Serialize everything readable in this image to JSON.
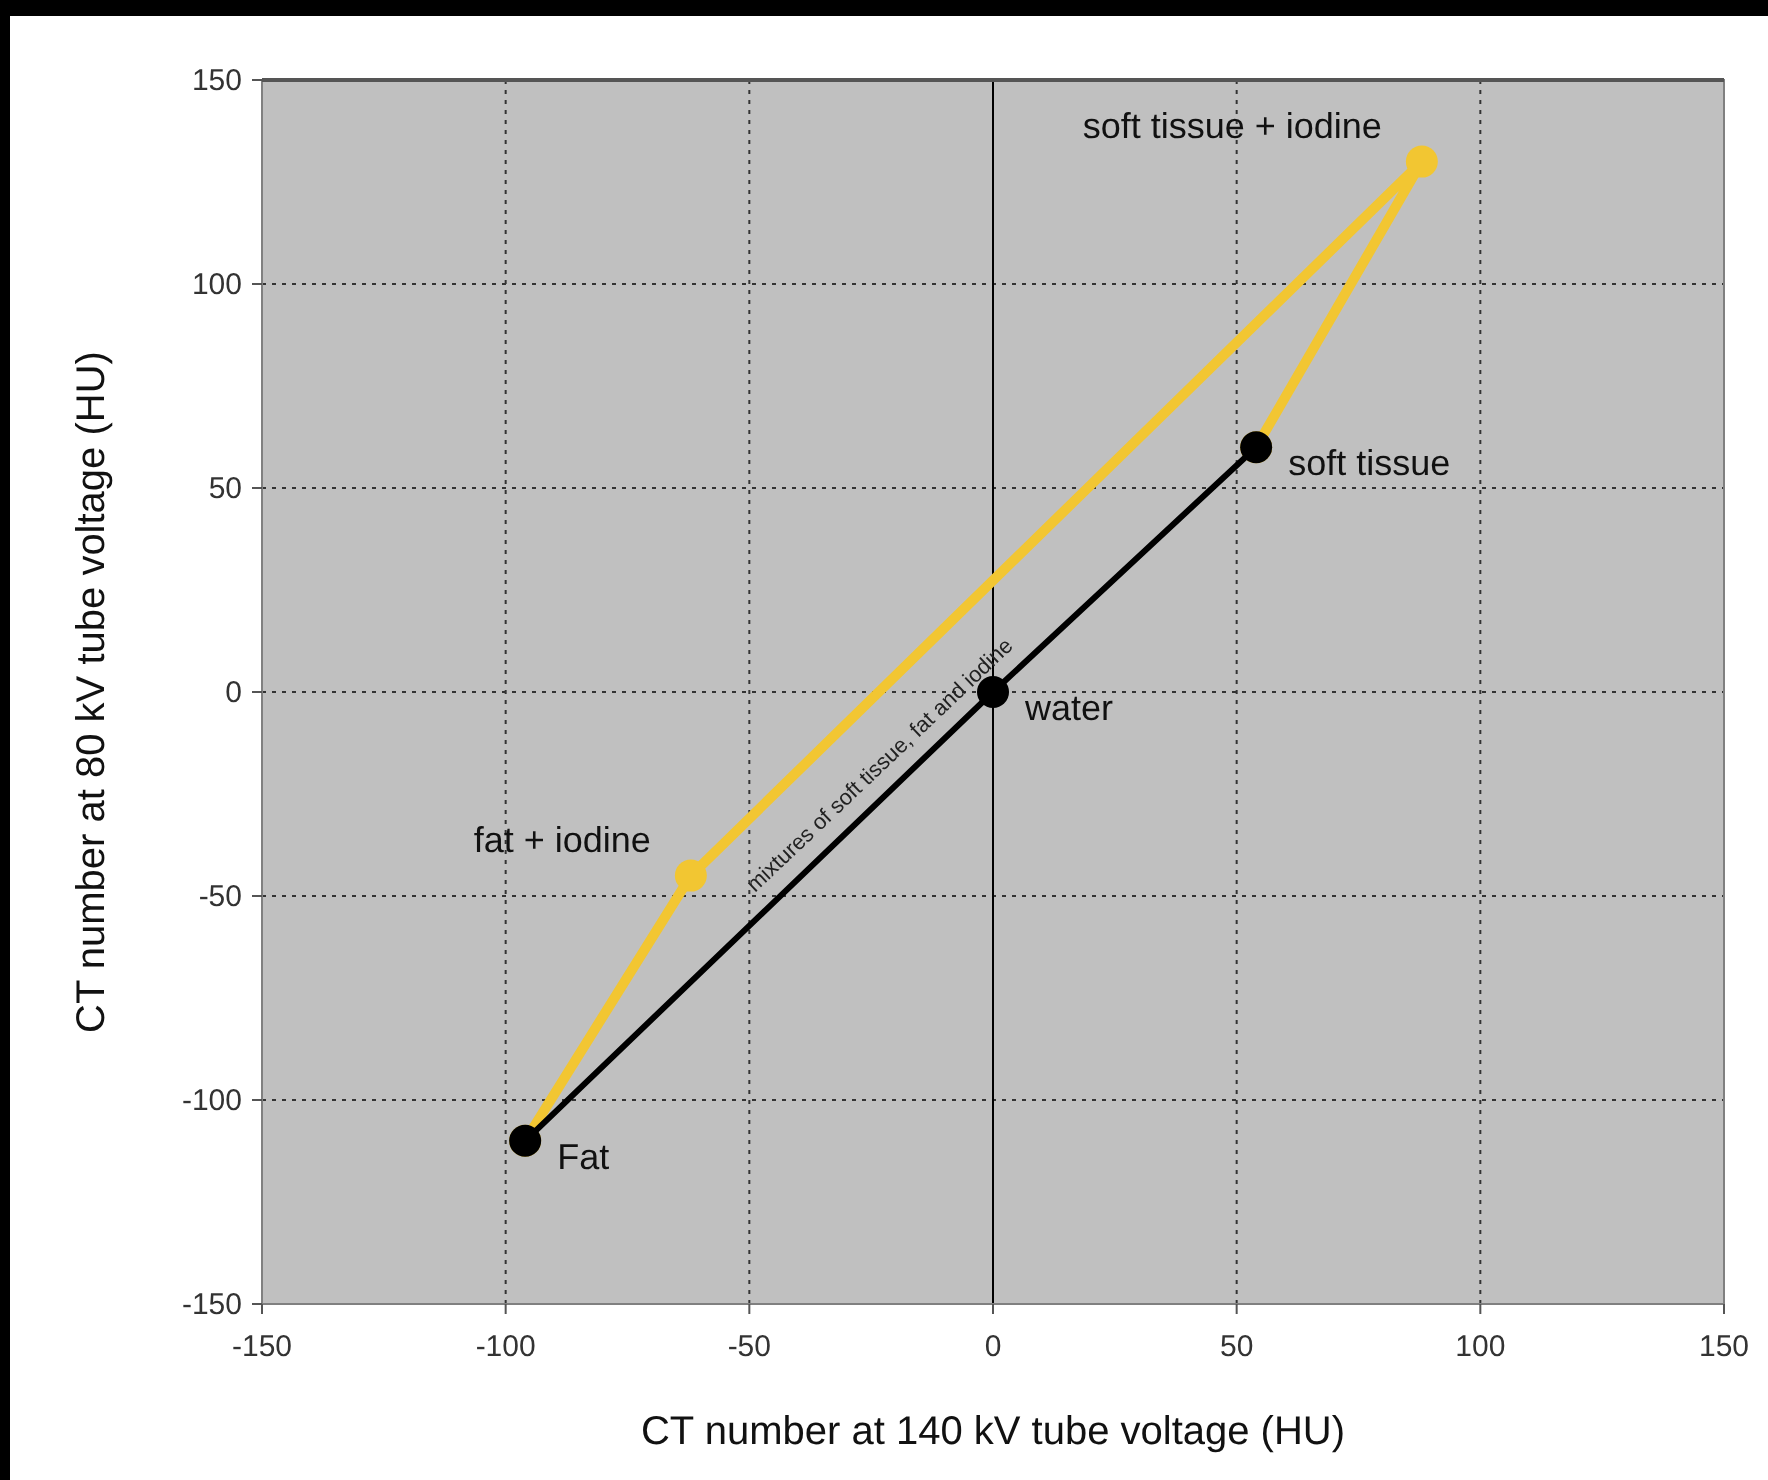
{
  "chart_data": {
    "type": "line",
    "xlabel": "CT number at 140 kV tube voltage (HU)",
    "ylabel": "CT number at 80 kV tube voltage (HU)",
    "xlim": [
      -150,
      150
    ],
    "xticks": [
      -150,
      -100,
      -50,
      0,
      50,
      100,
      150
    ],
    "ylim": [
      -150,
      150
    ],
    "yticks": [
      -150,
      -100,
      -50,
      0,
      50,
      100,
      150
    ],
    "grid": true,
    "marker": "circle",
    "line_style": "solid",
    "series": [
      {
        "color": "#f2c632",
        "x": [
          -96,
          -62,
          88,
          54
        ],
        "values": [
          -110,
          -45,
          130,
          60
        ]
      },
      {
        "color": "#000000",
        "x": [
          -96,
          0,
          54
        ],
        "values": [
          -110,
          0,
          60
        ]
      }
    ],
    "ref_lines": [
      {
        "axis": "x",
        "value": 0,
        "color": "#000000",
        "line_style": "solid"
      }
    ],
    "annotations": [
      {
        "text": "soft tissue + iodine",
        "x": 88,
        "y": 130
      },
      {
        "text": "soft tissue",
        "x": 54,
        "y": 60
      },
      {
        "text": "water",
        "x": 0,
        "y": 0
      },
      {
        "text": "fat + iodine",
        "x": -62,
        "y": -45
      },
      {
        "text": "Fat",
        "x": -96,
        "y": -110
      },
      {
        "text": "mixtures of soft tissue, fat and iodine",
        "x": -20,
        "y": -22
      }
    ]
  }
}
